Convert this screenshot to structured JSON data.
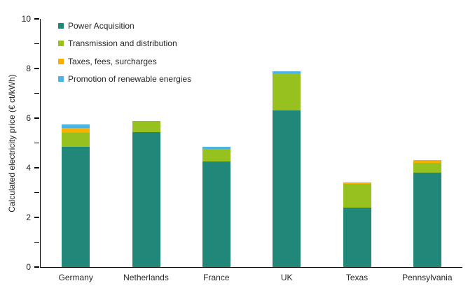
{
  "chart_data": {
    "type": "bar",
    "stacked": true,
    "title": "",
    "xlabel": "",
    "ylabel": "Calculated electricity price (€ ct/kWh)",
    "ylim": [
      0,
      10
    ],
    "ytick_major": [
      0,
      2,
      4,
      6,
      8,
      10
    ],
    "ytick_minor": [
      1,
      3,
      5,
      7,
      9
    ],
    "grid": false,
    "legend_position": "top-left",
    "categories": [
      "Germany",
      "Netherlands",
      "France",
      "UK",
      "Texas",
      "Pennsylvania"
    ],
    "series": [
      {
        "name": "Power Acquisition",
        "color": "#218779",
        "values": [
          4.85,
          5.45,
          4.25,
          6.3,
          2.4,
          3.8
        ]
      },
      {
        "name": "Transmission and distribution",
        "color": "#97c11e",
        "values": [
          0.55,
          0.45,
          0.5,
          1.5,
          0.95,
          0.4
        ]
      },
      {
        "name": "Taxes, fees, surcharges",
        "color": "#f8b000",
        "values": [
          0.2,
          0,
          0,
          0,
          0.05,
          0.1
        ]
      },
      {
        "name": "Promotion of renewable energies",
        "color": "#4db3e2",
        "values": [
          0.15,
          0,
          0.1,
          0.1,
          0,
          0
        ]
      }
    ],
    "axis_color": "#000000",
    "text_color": "#262626",
    "background_color": "#ffffff"
  }
}
